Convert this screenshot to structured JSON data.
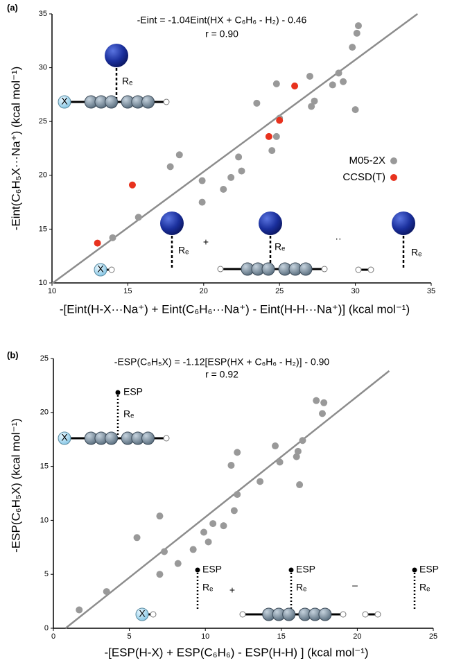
{
  "chart_data": [
    {
      "type": "scatter",
      "panel_label": "(a)",
      "equation": "-Eint = -1.04Eint(HX + C₆H₆ - H₂) - 0.46",
      "r_text": "r = 0.90",
      "x_label": "-[Eint(H-X···Na⁺) + Eint(C₆H₆···Na⁺) - Eint(H-H···Na⁺)] (kcal mol⁻¹)",
      "y_label": "-Eint(C₆H₅X···Na⁺) (kcal mol⁻¹)",
      "xlim": [
        10,
        35
      ],
      "ylim": [
        10,
        35
      ],
      "xticks": [
        10,
        15,
        20,
        25,
        30,
        35
      ],
      "yticks": [
        10,
        15,
        20,
        25,
        30,
        35
      ],
      "series": [
        {
          "name": "M05-2X",
          "color": "#999999",
          "x": [
            14,
            15.7,
            17.8,
            18.4,
            19.9,
            19.9,
            21.3,
            21.8,
            22.3,
            22.5,
            23.5,
            24.5,
            24.8,
            24.8,
            25,
            27,
            27.1,
            27.3,
            28.5,
            28.9,
            29.2,
            29.8,
            30,
            30.1,
            30.2
          ],
          "values": [
            14.2,
            16.1,
            20.8,
            21.9,
            17.5,
            19.5,
            18.7,
            19.8,
            21.7,
            20.4,
            26.7,
            22.3,
            23.6,
            28.5,
            25.3,
            29.2,
            26.4,
            26.9,
            28.4,
            29.5,
            28.7,
            31.9,
            26.1,
            33.2,
            33.9
          ]
        },
        {
          "name": "CCSD(T)",
          "color": "#e8321e",
          "x": [
            13,
            15.3,
            24.3,
            25,
            26
          ],
          "values": [
            13.7,
            19.1,
            23.6,
            25.1,
            28.3
          ]
        }
      ],
      "fit": {
        "color": "#8c8c8c",
        "x": [
          10,
          34.1
        ],
        "values": [
          9.94,
          35
        ]
      },
      "annotations": [
        "Rₑ",
        "X",
        "Rₑ",
        "X",
        "+",
        "Rₑ",
        "··",
        "Rₑ"
      ]
    },
    {
      "type": "scatter",
      "panel_label": "(b)",
      "equation": "-ESP(C₆H₅X) = -1.12[ESP(HX + C₆H₆ - H₂)] - 0.90",
      "r_text": "r = 0.92",
      "x_label": "-[ESP(H-X) + ESP(C₆H₆) - ESP(H-H) ] (kcal mol⁻¹)",
      "y_label": "-ESP(C₆H₅X) (kcal mol⁻¹)",
      "xlim": [
        0,
        25
      ],
      "ylim": [
        0,
        25
      ],
      "xticks": [
        0,
        5,
        10,
        15,
        20,
        25
      ],
      "yticks": [
        0,
        5,
        10,
        15,
        20,
        25
      ],
      "series": [
        {
          "color": "#999999",
          "x": [
            1.7,
            3.5,
            5.5,
            7,
            7,
            7.3,
            8.2,
            9.2,
            9.9,
            10.2,
            10.5,
            11.2,
            11.7,
            11.9,
            12.1,
            12.1,
            13.6,
            14.6,
            14.9,
            16,
            16.1,
            16.2,
            16.4,
            17.3,
            17.7,
            17.8
          ],
          "values": [
            1.7,
            3.4,
            8.4,
            5,
            10.4,
            7.1,
            6,
            7.3,
            8.9,
            8,
            9.7,
            9.5,
            15.1,
            10.9,
            12.4,
            16.3,
            13.6,
            16.9,
            15.4,
            15.9,
            16.4,
            13.3,
            17.4,
            21.1,
            19.9,
            20.9
          ]
        }
      ],
      "fit": {
        "color": "#8c8c8c",
        "x": [
          0.8,
          22.1
        ],
        "values": [
          0,
          23.85
        ]
      },
      "annotations": [
        "ESP",
        "Rₑ",
        "X",
        "ESP",
        "Rₑ",
        "X",
        "+",
        "ESP",
        "Rₑ",
        "–",
        "ESP",
        "Rₑ"
      ]
    }
  ]
}
